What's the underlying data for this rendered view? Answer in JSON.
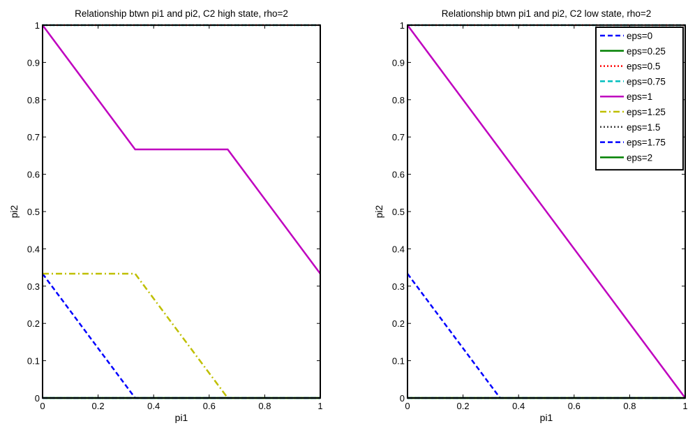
{
  "figure": {
    "background": "#ffffff"
  },
  "chart_data": [
    {
      "type": "line",
      "title": "Relationship btwn pi1 and pi2, C2 high state, rho=2",
      "xlabel": "pi1",
      "ylabel": "pi2",
      "xlim": [
        0,
        1
      ],
      "ylim": [
        0,
        1
      ],
      "xticks": [
        0,
        0.2,
        0.4,
        0.6,
        0.8,
        1
      ],
      "xtick_labels": [
        "0",
        "0.2",
        "0.4",
        "0.6",
        "0.8",
        "1"
      ],
      "yticks": [
        0,
        0.1,
        0.2,
        0.3,
        0.4,
        0.5,
        0.6,
        0.7,
        0.8,
        0.9,
        1
      ],
      "ytick_labels": [
        "0",
        "0.1",
        "0.2",
        "0.3",
        "0.4",
        "0.5",
        "0.6",
        "0.7",
        "0.8",
        "0.9",
        "1"
      ],
      "grid": false,
      "legend": null,
      "series": [
        {
          "name": "eps=0",
          "color": "#0000ff",
          "style": "dashed",
          "x": [
            0,
            0.3333,
            1
          ],
          "y": [
            0.3333,
            0,
            0
          ]
        },
        {
          "name": "eps=0.25",
          "color": "#008000",
          "style": "solid",
          "x": [
            0,
            1
          ],
          "y": [
            0,
            0
          ]
        },
        {
          "name": "eps=0.5",
          "color": "#ff0000",
          "style": "dotted",
          "x": [
            0,
            1
          ],
          "y": [
            1,
            1
          ]
        },
        {
          "name": "eps=0.75",
          "color": "#00bfbf",
          "style": "dashed",
          "x": [
            0,
            1
          ],
          "y": [
            1,
            1
          ]
        },
        {
          "name": "eps=1",
          "color": "#bf00bf",
          "style": "solid",
          "x": [
            0,
            0.3333,
            0.6667,
            1
          ],
          "y": [
            1,
            0.6667,
            0.6667,
            0.3333
          ]
        },
        {
          "name": "eps=1.25",
          "color": "#bfbf00",
          "style": "dashdot",
          "x": [
            0,
            0.3333,
            0.6667,
            1
          ],
          "y": [
            0.3333,
            0.3333,
            0,
            0
          ]
        },
        {
          "name": "eps=1.5",
          "color": "#404040",
          "style": "dotted",
          "x": [
            0,
            1
          ],
          "y": [
            0,
            0
          ]
        },
        {
          "name": "eps=1.75",
          "color": "#0000ff",
          "style": "dashed",
          "x": [
            0,
            1
          ],
          "y": [
            0,
            0
          ]
        },
        {
          "name": "eps=2",
          "color": "#008000",
          "style": "solid",
          "x": [
            0,
            1
          ],
          "y": [
            0,
            0
          ]
        }
      ]
    },
    {
      "type": "line",
      "title": "Relationship btwn pi1 and pi2, C2 low state, rho=2",
      "xlabel": "pi1",
      "ylabel": "pi2",
      "xlim": [
        0,
        1
      ],
      "ylim": [
        0,
        1
      ],
      "xticks": [
        0,
        0.2,
        0.4,
        0.6,
        0.8,
        1
      ],
      "xtick_labels": [
        "0",
        "0.2",
        "0.4",
        "0.6",
        "0.8",
        "1"
      ],
      "yticks": [
        0,
        0.1,
        0.2,
        0.3,
        0.4,
        0.5,
        0.6,
        0.7,
        0.8,
        0.9,
        1
      ],
      "ytick_labels": [
        "0",
        "0.1",
        "0.2",
        "0.3",
        "0.4",
        "0.5",
        "0.6",
        "0.7",
        "0.8",
        "0.9",
        "1"
      ],
      "grid": false,
      "legend": "top-right",
      "series": [
        {
          "name": "eps=0",
          "color": "#0000ff",
          "style": "dashed",
          "x": [
            0,
            0.3333,
            1
          ],
          "y": [
            0.3333,
            0,
            0
          ]
        },
        {
          "name": "eps=0.25",
          "color": "#008000",
          "style": "solid",
          "x": [
            0,
            1
          ],
          "y": [
            0,
            0
          ]
        },
        {
          "name": "eps=0.5",
          "color": "#ff0000",
          "style": "dotted",
          "x": [
            0,
            1
          ],
          "y": [
            1,
            1
          ]
        },
        {
          "name": "eps=0.75",
          "color": "#00bfbf",
          "style": "dashed",
          "x": [
            0,
            1
          ],
          "y": [
            1,
            1
          ]
        },
        {
          "name": "eps=1",
          "color": "#bf00bf",
          "style": "solid",
          "x": [
            0,
            1
          ],
          "y": [
            1,
            0
          ]
        },
        {
          "name": "eps=1.25",
          "color": "#bfbf00",
          "style": "dashdot",
          "x": [
            0,
            1
          ],
          "y": [
            0,
            0
          ]
        },
        {
          "name": "eps=1.5",
          "color": "#404040",
          "style": "dotted",
          "x": [
            0,
            1
          ],
          "y": [
            0,
            0
          ]
        },
        {
          "name": "eps=1.75",
          "color": "#0000ff",
          "style": "dashed",
          "x": [
            0,
            1
          ],
          "y": [
            0,
            0
          ]
        },
        {
          "name": "eps=2",
          "color": "#008000",
          "style": "solid",
          "x": [
            0,
            1
          ],
          "y": [
            0,
            0
          ]
        }
      ]
    }
  ]
}
